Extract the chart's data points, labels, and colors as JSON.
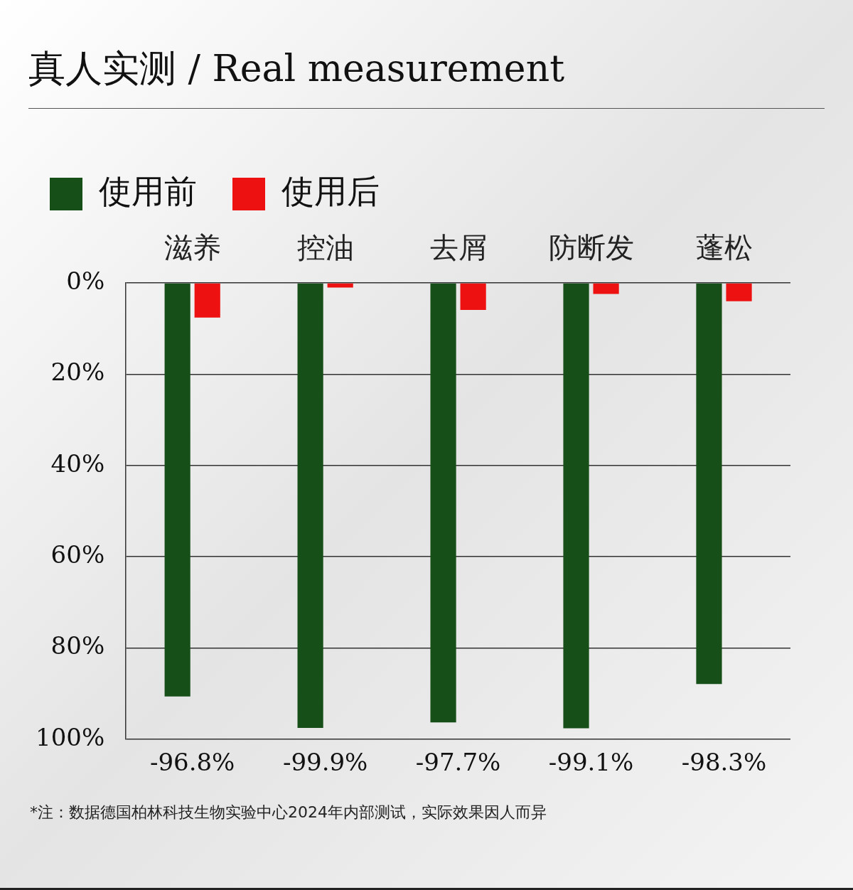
{
  "chart_data": {
    "type": "bar",
    "title": "真人实测 / Real measurement",
    "categories": [
      "滋养",
      "控油",
      "去屑",
      "防断发",
      "蓬松"
    ],
    "series": [
      {
        "name": "使用前",
        "color": "#174f18",
        "values": [
          90.6,
          97.5,
          96.3,
          97.6,
          87.9
        ]
      },
      {
        "name": "使用后",
        "color": "#ee1111",
        "values": [
          7.6,
          1.0,
          5.9,
          2.4,
          4.0
        ]
      }
    ],
    "ylim": [
      100,
      0
    ],
    "yticks": [
      {
        "value": 0,
        "label": "0%"
      },
      {
        "value": 20,
        "label": "20%"
      },
      {
        "value": 40,
        "label": "40%"
      },
      {
        "value": 60,
        "label": "60%"
      },
      {
        "value": 80,
        "label": "80%"
      },
      {
        "value": 100,
        "label": "100%"
      }
    ],
    "grid": "y",
    "legend": "top left",
    "annotations": [
      "-96.8%",
      "-99.9%",
      "-97.7%",
      "-99.1%",
      "-98.3%",
      "*注：数据德国柏林科技生物实验中心2024年内部测试，实际效果因人而异"
    ]
  }
}
